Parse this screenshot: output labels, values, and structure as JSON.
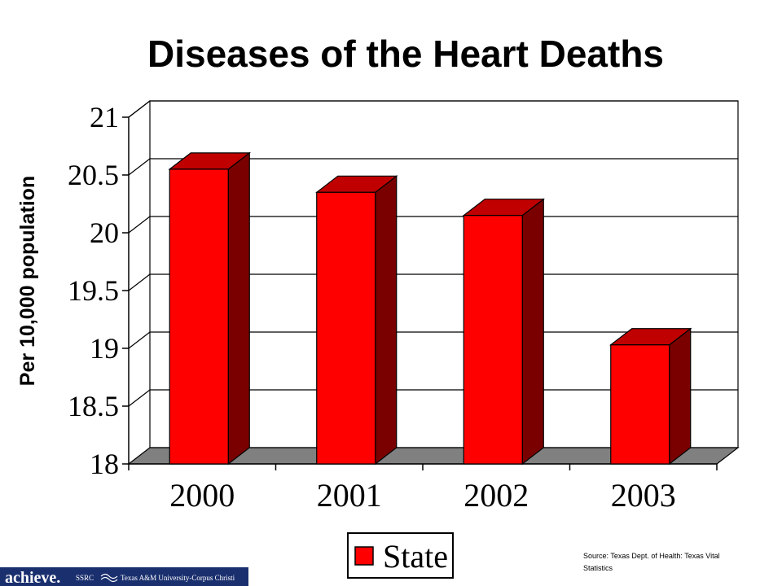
{
  "chart_data": {
    "type": "bar",
    "title": "Diseases of the Heart Deaths",
    "xlabel": "",
    "ylabel": "Per 10,000 population",
    "categories": [
      "2000",
      "2001",
      "2002",
      "2003"
    ],
    "series": [
      {
        "name": "State",
        "values": [
          20.55,
          20.35,
          20.15,
          19.03
        ]
      }
    ],
    "ylim": [
      18,
      21
    ],
    "yticks": [
      "18",
      "18.5",
      "19",
      "19.5",
      "20",
      "20.5",
      "21"
    ],
    "grid": true,
    "legend_position": "bottom-center",
    "colors": {
      "bar_front": "#ff0000",
      "bar_top": "#c00000",
      "bar_side": "#7a0000",
      "floor": "#808080"
    }
  },
  "source": {
    "line1": "Source:  Texas Dept. of Health: Texas Vital",
    "line2": "Statistics"
  },
  "logo": {
    "achieve": "achieve.",
    "ssrc": "SSRC",
    "university": "Texas A&M University-Corpus Christi",
    "colors": {
      "background": "#1a2f6e"
    }
  }
}
